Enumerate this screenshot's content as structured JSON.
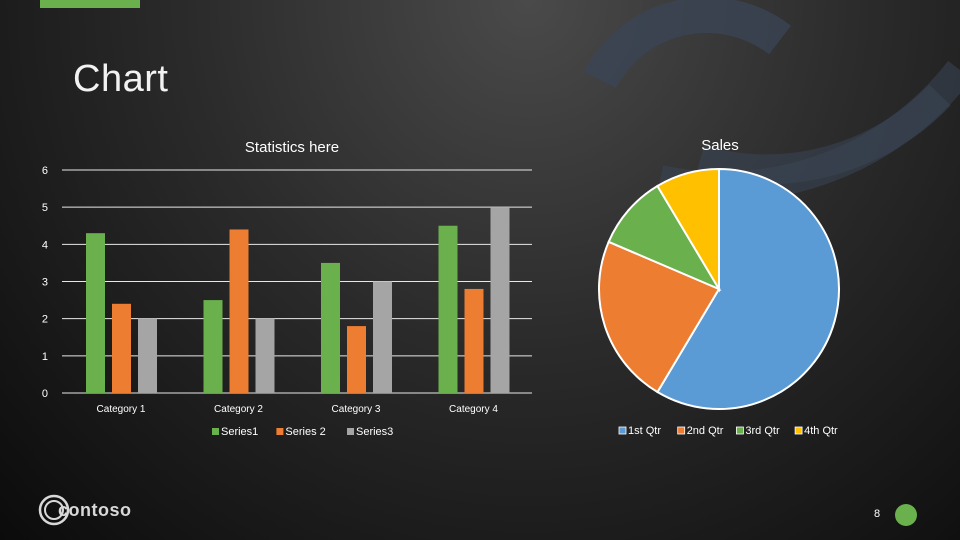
{
  "slide": {
    "title": "Chart",
    "page_number": "8",
    "logo_text": "contoso",
    "accent_color": "#6ab04c"
  },
  "chart_data": [
    {
      "type": "bar",
      "title": "Statistics here",
      "categories": [
        "Category 1",
        "Category 2",
        "Category 3",
        "Category 4"
      ],
      "series": [
        {
          "name": "Series1",
          "values": [
            4.3,
            2.5,
            3.5,
            4.5
          ],
          "color": "#6ab04c"
        },
        {
          "name": "Series 2",
          "values": [
            2.4,
            4.4,
            1.8,
            2.8
          ],
          "color": "#ed7d31"
        },
        {
          "name": "Series3",
          "values": [
            2,
            2,
            3,
            5
          ],
          "color": "#a5a5a5"
        }
      ],
      "ylim": [
        0,
        6
      ],
      "yticks": [
        "0",
        "1",
        "2",
        "3",
        "4",
        "5",
        "6"
      ],
      "grid": true,
      "legend": "bottom"
    },
    {
      "type": "pie",
      "title": "Sales",
      "labels": [
        "1st Qtr",
        "2nd Qtr",
        "3rd Qtr",
        "4th Qtr"
      ],
      "values": [
        8.2,
        3.2,
        1.4,
        1.2
      ],
      "colors": [
        "#5b9bd5",
        "#ed7d31",
        "#6ab04c",
        "#ffc000"
      ],
      "legend": "bottom"
    }
  ]
}
